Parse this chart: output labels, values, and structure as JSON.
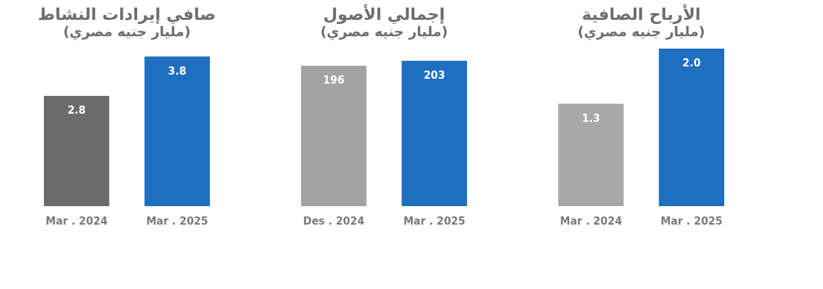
{
  "chart_data": [
    {
      "type": "bar",
      "title": "صافي إيرادات النشاط",
      "subtitle": "(مليار جنيه مصري)",
      "categories": [
        "Mar . 2024",
        "Mar . 2025"
      ],
      "values": [
        2.8,
        3.8
      ],
      "colors": [
        "#6b6b6b",
        "#1f6fc0"
      ],
      "value_labels": [
        "2.8",
        "3.8"
      ],
      "tick_labels": "x"
    },
    {
      "type": "bar",
      "title": "إجمالي الأصول",
      "subtitle": "(مليار جنيه مصري)",
      "categories": [
        "Des . 2024",
        "Mar . 2025"
      ],
      "values": [
        196,
        203
      ],
      "colors": [
        "#a3a3a3",
        "#1f6fc0"
      ],
      "value_labels": [
        "196",
        "203"
      ],
      "tick_labels": "x"
    },
    {
      "type": "bar",
      "title": "الأرباح الصافية",
      "subtitle": "(مليار جنيه مصري)",
      "categories": [
        "Mar . 2024",
        "Mar . 2025"
      ],
      "values": [
        1.3,
        2.0
      ],
      "colors": [
        "#a8a8a8",
        "#1f6fc0"
      ],
      "value_labels": [
        "1.3",
        "2.0"
      ],
      "tick_labels": "x"
    }
  ]
}
